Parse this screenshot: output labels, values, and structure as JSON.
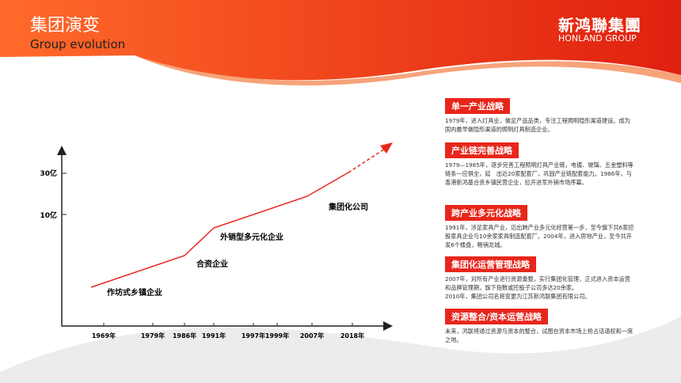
{
  "header": {
    "title": "集团演变",
    "subtitle": "Group evolution",
    "logo": "新鸿聯集團",
    "logo_en": "HONLAND GROUP"
  },
  "timeline": {
    "y_labels": [
      "30亿",
      "10亿"
    ],
    "x_labels": [
      "1969年",
      "1979年",
      "1986年",
      "1991年",
      "1997年",
      "1999年",
      "2007年",
      "2018年"
    ],
    "stages": [
      "作坊式乡镇企业",
      "合资企业",
      "外销型多元化企业",
      "集团化公司"
    ]
  },
  "strategies": [
    {
      "title": "单一产业战略",
      "paragraphs": [
        "1979年，进入灯具业，做足产品品类，专注工程照明隐形渠道建设。成为国内最早做隐形渠道的照明灯具制造企业。"
      ]
    },
    {
      "title": "产业链完善战略",
      "paragraphs": [
        "1979—1985年，逐步完善工程照明灯具产业链，电镀、玻璃、五金塑料等链条一应俱全，延　出近20家配套厂，巩固产业链配套能力。1986年，与香港新鸿基合资乡镇民营企业，拉开进军外销市场序幕。"
      ]
    },
    {
      "title": "跨产业多元化战略",
      "paragraphs": [
        "1991年，涉足家具产业，迈出跨产业多元化经营第一步，至今旗下共6家控股家具企业与10余家家具制造配套厂。2004年，进入房地产业，至今共开发6个楼盘，畅销龙城。"
      ]
    },
    {
      "title": "集团化运营管理战略",
      "paragraphs": [
        "2007年，对所有产业进行资源重整，实行集团化管理，正式进入资本运营和品牌管理期，旗下指数或控股子公司多达20余家。",
        "2010年，集团公司名称变更为江苏新鸿联集团有限公司。"
      ]
    },
    {
      "title": "资源整合/资本运营战略",
      "paragraphs": [
        "未来，鸿联将通过资源与资本的整合，试图在资本市场上抢占话语权和一席之地。"
      ]
    }
  ]
}
